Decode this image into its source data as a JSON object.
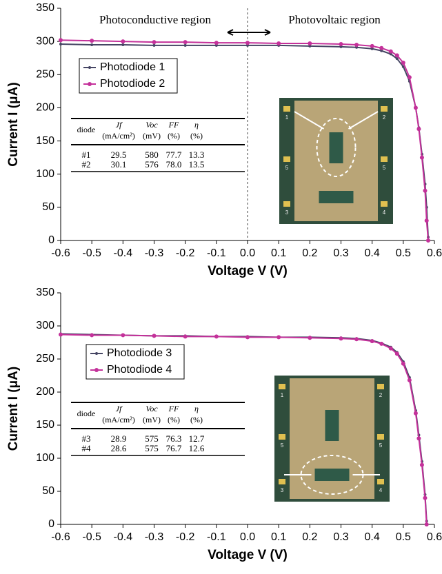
{
  "chart_data": [
    {
      "type": "line",
      "annotations": [
        "Photoconductive region",
        "Photovoltaic region"
      ],
      "vline": 0,
      "xlabel": "Voltage V (V)",
      "ylabel": "Current I (μA)",
      "xlim": [
        -0.6,
        0.6
      ],
      "xticks": [
        -0.6,
        -0.5,
        -0.4,
        -0.3,
        -0.2,
        -0.1,
        {
          "value": 0,
          "label": "0.0"
        },
        0.1,
        0.2,
        0.3,
        0.4,
        0.5,
        0.6
      ],
      "ylim": [
        0,
        350
      ],
      "yticks": [
        0,
        50,
        100,
        150,
        200,
        250,
        300,
        350
      ],
      "series": [
        {
          "name": "Photodiode 1",
          "color": "#454563",
          "x": [
            -0.6,
            -0.5,
            -0.4,
            -0.3,
            -0.2,
            -0.1,
            0,
            0.1,
            0.2,
            0.3,
            0.35,
            0.4,
            0.43,
            0.46,
            0.48,
            0.5,
            0.52,
            0.54,
            0.55,
            0.56,
            0.57,
            0.575,
            0.58
          ],
          "values": [
            296,
            295,
            295,
            294,
            294,
            294,
            294,
            294,
            293,
            292,
            291,
            289,
            286,
            281,
            274,
            262,
            240,
            200,
            170,
            130,
            85,
            50,
            5
          ]
        },
        {
          "name": "Photodiode 2",
          "color": "#c4319a",
          "x": [
            -0.6,
            -0.5,
            -0.4,
            -0.3,
            -0.2,
            -0.1,
            0,
            0.1,
            0.2,
            0.3,
            0.35,
            0.4,
            0.43,
            0.46,
            0.48,
            0.5,
            0.52,
            0.54,
            0.55,
            0.56,
            0.57,
            0.575,
            0.58
          ],
          "values": [
            302,
            301,
            300,
            299,
            299,
            298,
            298,
            297,
            297,
            296,
            295,
            293,
            290,
            285,
            279,
            268,
            246,
            200,
            168,
            125,
            75,
            30,
            0
          ]
        }
      ],
      "table": {
        "columns": [
          {
            "name": "diode"
          },
          {
            "name": "Jf",
            "unit": "(mA/cm²)"
          },
          {
            "name": "Voc",
            "unit": "(mV)"
          },
          {
            "name": "FF",
            "unit": "(%)"
          },
          {
            "name": "η",
            "unit": "(%)"
          }
        ],
        "rows": [
          [
            "#1",
            "29.5",
            "580",
            "77.7",
            "13.3"
          ],
          [
            "#2",
            "30.1",
            "576",
            "78.0",
            "13.5"
          ]
        ]
      },
      "inset_labels": [
        "1",
        "2",
        "5",
        "5",
        "3",
        "4"
      ]
    },
    {
      "type": "line",
      "xlabel": "Voltage V (V)",
      "ylabel": "Current I (μA)",
      "xlim": [
        -0.6,
        0.6
      ],
      "xticks": [
        -0.6,
        -0.5,
        -0.4,
        -0.3,
        -0.2,
        -0.1,
        {
          "value": 0,
          "label": "0.0"
        },
        0.1,
        0.2,
        0.3,
        0.4,
        0.5,
        0.6
      ],
      "ylim": [
        0,
        350
      ],
      "yticks": [
        0,
        50,
        100,
        150,
        200,
        250,
        300,
        350
      ],
      "series": [
        {
          "name": "Photodiode 3",
          "color": "#454563",
          "x": [
            -0.6,
            -0.5,
            -0.4,
            -0.3,
            -0.2,
            -0.1,
            0,
            0.1,
            0.2,
            0.3,
            0.35,
            0.4,
            0.43,
            0.46,
            0.48,
            0.5,
            0.52,
            0.54,
            0.55,
            0.56,
            0.57,
            0.575
          ],
          "values": [
            288,
            287,
            286,
            285,
            285,
            284,
            284,
            283,
            283,
            282,
            281,
            278,
            274,
            268,
            260,
            246,
            222,
            172,
            135,
            95,
            45,
            5
          ]
        },
        {
          "name": "Photodiode 4",
          "color": "#c4319a",
          "x": [
            -0.6,
            -0.5,
            -0.4,
            -0.3,
            -0.2,
            -0.1,
            0,
            0.1,
            0.2,
            0.3,
            0.35,
            0.4,
            0.43,
            0.46,
            0.48,
            0.5,
            0.52,
            0.54,
            0.55,
            0.56,
            0.57,
            0.575
          ],
          "values": [
            287,
            286,
            286,
            285,
            284,
            284,
            283,
            283,
            282,
            281,
            280,
            277,
            273,
            266,
            258,
            243,
            218,
            168,
            130,
            90,
            40,
            0
          ]
        }
      ],
      "table": {
        "columns": [
          {
            "name": "diode"
          },
          {
            "name": "Jf",
            "unit": "(mA/cm²)"
          },
          {
            "name": "Voc",
            "unit": "(mV)"
          },
          {
            "name": "FF",
            "unit": "(%)"
          },
          {
            "name": "η",
            "unit": "(%)"
          }
        ],
        "rows": [
          [
            "#3",
            "28.9",
            "575",
            "76.3",
            "12.7"
          ],
          [
            "#4",
            "28.6",
            "575",
            "76.7",
            "12.6"
          ]
        ]
      },
      "inset_labels": [
        "1",
        "2",
        "5",
        "5",
        "3",
        "4"
      ]
    }
  ]
}
